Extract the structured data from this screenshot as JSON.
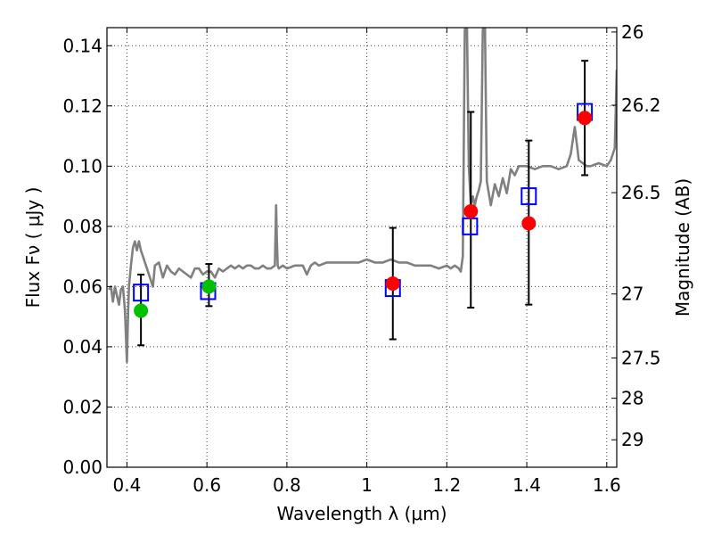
{
  "chart_data": {
    "type": "scatter",
    "xlabel": "Wavelength  λ (μm)",
    "ylabel": "Flux  Fν  ( μJy )",
    "y2label": "Magnitude (AB)",
    "xlim": [
      0.35,
      1.625
    ],
    "ylim": [
      0.0,
      0.146
    ],
    "grid": true,
    "x_ticks": [
      0.4,
      0.6,
      0.8,
      1.0,
      1.2,
      1.4,
      1.6
    ],
    "x_tick_labels": [
      "0.4",
      "0.6",
      "0.8",
      "1",
      "1.2",
      "1.4",
      "1.6"
    ],
    "y_ticks": [
      0.0,
      0.02,
      0.04,
      0.06,
      0.08,
      0.1,
      0.12,
      0.14
    ],
    "y_tick_labels": [
      "0.00",
      "0.02",
      "0.04",
      "0.06",
      "0.08",
      "0.10",
      "0.12",
      "0.14"
    ],
    "y2_ticks": [
      26,
      26.2,
      26.5,
      27,
      27.5,
      28,
      29
    ],
    "y2_tick_labels": [
      "26",
      "26.2",
      "26.5",
      "27",
      "27.5",
      "28",
      "29"
    ],
    "series": [
      {
        "kind": "model_spectrum",
        "color": "#808080",
        "x": [
          0.355,
          0.36,
          0.365,
          0.37,
          0.375,
          0.38,
          0.385,
          0.39,
          0.395,
          0.4,
          0.403,
          0.405,
          0.41,
          0.415,
          0.42,
          0.425,
          0.43,
          0.435,
          0.44,
          0.445,
          0.45,
          0.455,
          0.46,
          0.465,
          0.47,
          0.48,
          0.49,
          0.5,
          0.51,
          0.52,
          0.53,
          0.54,
          0.55,
          0.56,
          0.57,
          0.58,
          0.59,
          0.6,
          0.61,
          0.62,
          0.63,
          0.64,
          0.65,
          0.66,
          0.67,
          0.68,
          0.69,
          0.7,
          0.71,
          0.72,
          0.73,
          0.74,
          0.75,
          0.76,
          0.77,
          0.773,
          0.775,
          0.777,
          0.78,
          0.79,
          0.8,
          0.82,
          0.84,
          0.85,
          0.86,
          0.87,
          0.88,
          0.9,
          0.92,
          0.94,
          0.96,
          0.98,
          1.0,
          1.02,
          1.04,
          1.06,
          1.08,
          1.1,
          1.12,
          1.14,
          1.16,
          1.18,
          1.2,
          1.21,
          1.22,
          1.23,
          1.235,
          1.24,
          1.245,
          1.25,
          1.255,
          1.26,
          1.265,
          1.27,
          1.275,
          1.28,
          1.285,
          1.29,
          1.295,
          1.3,
          1.31,
          1.32,
          1.33,
          1.34,
          1.35,
          1.36,
          1.37,
          1.38,
          1.39,
          1.4,
          1.42,
          1.44,
          1.46,
          1.48,
          1.5,
          1.51,
          1.52,
          1.53,
          1.54,
          1.55,
          1.56,
          1.58,
          1.6,
          1.61,
          1.62,
          1.625
        ],
        "y": [
          0.059,
          0.06,
          0.055,
          0.06,
          0.057,
          0.054,
          0.059,
          0.06,
          0.052,
          0.035,
          0.052,
          0.06,
          0.067,
          0.073,
          0.075,
          0.072,
          0.075,
          0.072,
          0.07,
          0.068,
          0.066,
          0.064,
          0.062,
          0.06,
          0.067,
          0.068,
          0.063,
          0.067,
          0.065,
          0.064,
          0.066,
          0.065,
          0.064,
          0.063,
          0.066,
          0.066,
          0.064,
          0.065,
          0.065,
          0.063,
          0.066,
          0.065,
          0.066,
          0.067,
          0.066,
          0.067,
          0.066,
          0.067,
          0.067,
          0.066,
          0.066,
          0.067,
          0.066,
          0.066,
          0.067,
          0.087,
          0.075,
          0.067,
          0.066,
          0.067,
          0.066,
          0.067,
          0.067,
          0.064,
          0.067,
          0.068,
          0.067,
          0.068,
          0.068,
          0.068,
          0.068,
          0.068,
          0.069,
          0.068,
          0.068,
          0.069,
          0.068,
          0.068,
          0.067,
          0.067,
          0.067,
          0.066,
          0.067,
          0.066,
          0.067,
          0.066,
          0.065,
          0.07,
          0.145,
          0.15,
          0.1,
          0.087,
          0.09,
          0.087,
          0.09,
          0.092,
          0.095,
          0.145,
          0.15,
          0.095,
          0.087,
          0.094,
          0.09,
          0.096,
          0.091,
          0.099,
          0.097,
          0.1,
          0.1,
          0.1,
          0.099,
          0.1,
          0.1,
          0.099,
          0.1,
          0.104,
          0.113,
          0.102,
          0.101,
          0.1,
          0.1,
          0.101,
          0.1,
          0.102,
          0.106,
          0.132
        ]
      },
      {
        "kind": "model_photometry",
        "color": "#0000ff",
        "x": [
          0.435,
          0.603,
          1.065,
          1.258,
          1.405,
          1.545
        ],
        "y": [
          0.058,
          0.0585,
          0.0595,
          0.08,
          0.09,
          0.118
        ]
      },
      {
        "kind": "observed_with_errors",
        "color": "#ff0000",
        "x": [
          1.065,
          1.26,
          1.405,
          1.545
        ],
        "y": [
          0.061,
          0.085,
          0.081,
          0.116
        ],
        "err_low": [
          0.0425,
          0.053,
          0.054,
          0.097
        ],
        "err_high": [
          0.0795,
          0.118,
          0.1085,
          0.135
        ]
      },
      {
        "kind": "observed_green",
        "color": "#00c000",
        "x": [
          0.435,
          0.605
        ],
        "y": [
          0.052,
          0.06
        ]
      },
      {
        "kind": "errorbars_only",
        "x": [
          0.435,
          0.605
        ],
        "err_low": [
          0.0405,
          0.0535
        ],
        "err_high": [
          0.064,
          0.0675
        ]
      }
    ]
  }
}
